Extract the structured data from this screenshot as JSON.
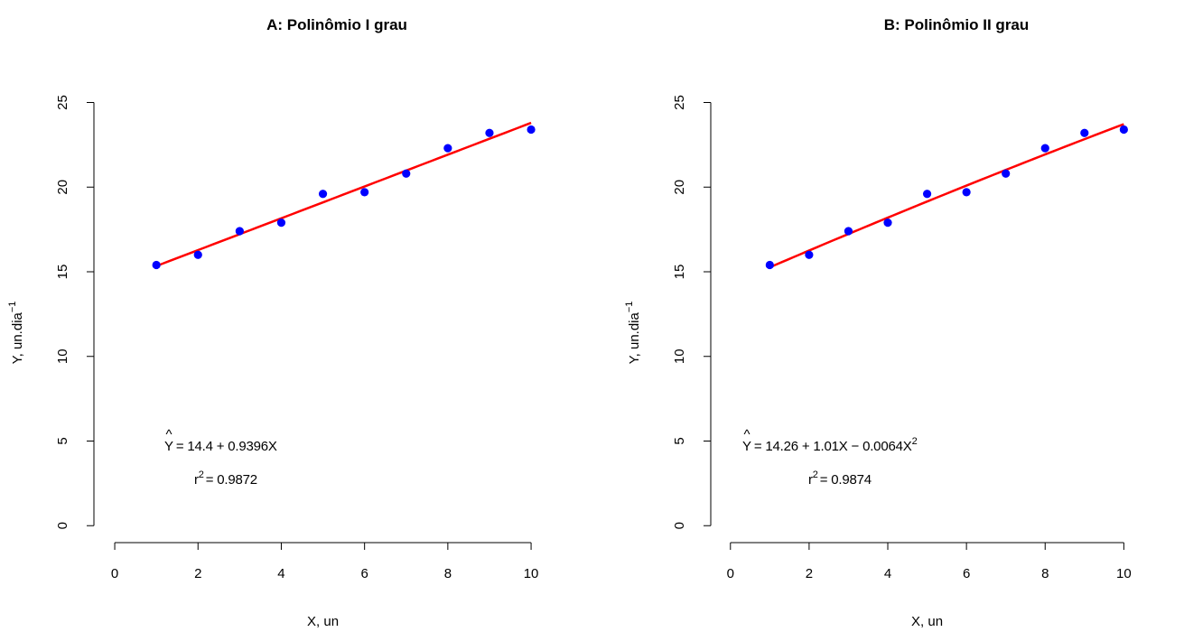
{
  "chart_data": [
    {
      "type": "scatter",
      "title": "A: Polinômio I grau",
      "xlabel": "X, un",
      "ylabel": "Y, un.dia",
      "ylabel_superscript": "−1",
      "xlim": [
        -0.5,
        11.3
      ],
      "ylim": [
        -1,
        27
      ],
      "xticks": [
        0,
        2,
        4,
        6,
        8,
        10
      ],
      "yticks": [
        0,
        5,
        10,
        15,
        20,
        25
      ],
      "grid": false,
      "point_color": "#0000ff",
      "line_color": "#ff0000",
      "series": [
        {
          "x": [
            1,
            2,
            3,
            4,
            5,
            6,
            7,
            8,
            9,
            10
          ],
          "y": [
            15.4,
            16.0,
            17.4,
            17.9,
            19.6,
            19.7,
            20.8,
            22.3,
            23.2,
            23.4
          ]
        }
      ],
      "fit": {
        "coefficients": [
          14.4,
          0.9396
        ]
      },
      "equation": {
        "lhs": "Y",
        "hat": "^",
        "rhs": "= 14.4 + 0.9396X",
        "superscript": ""
      },
      "r2": {
        "base": "r",
        "sup": "2",
        "rhs": "= 0.9872"
      }
    },
    {
      "type": "scatter",
      "title": "B: Polinômio II grau",
      "xlabel": "X, un",
      "ylabel": "Y, un.dia",
      "ylabel_superscript": "−1",
      "xlim": [
        -0.5,
        11.3
      ],
      "ylim": [
        -1,
        27
      ],
      "xticks": [
        0,
        2,
        4,
        6,
        8,
        10
      ],
      "yticks": [
        0,
        5,
        10,
        15,
        20,
        25
      ],
      "grid": false,
      "point_color": "#0000ff",
      "line_color": "#ff0000",
      "series": [
        {
          "x": [
            1,
            2,
            3,
            4,
            5,
            6,
            7,
            8,
            9,
            10
          ],
          "y": [
            15.4,
            16.0,
            17.4,
            17.9,
            19.6,
            19.7,
            20.8,
            22.3,
            23.2,
            23.4
          ]
        }
      ],
      "fit": {
        "coefficients": [
          14.26,
          1.01,
          -0.0064
        ]
      },
      "equation": {
        "lhs": "Y",
        "hat": "^",
        "rhs": "= 14.26 + 1.01X − 0.0064X",
        "superscript": "2"
      },
      "r2": {
        "base": "r",
        "sup": "2",
        "rhs": "= 0.9874"
      }
    }
  ]
}
